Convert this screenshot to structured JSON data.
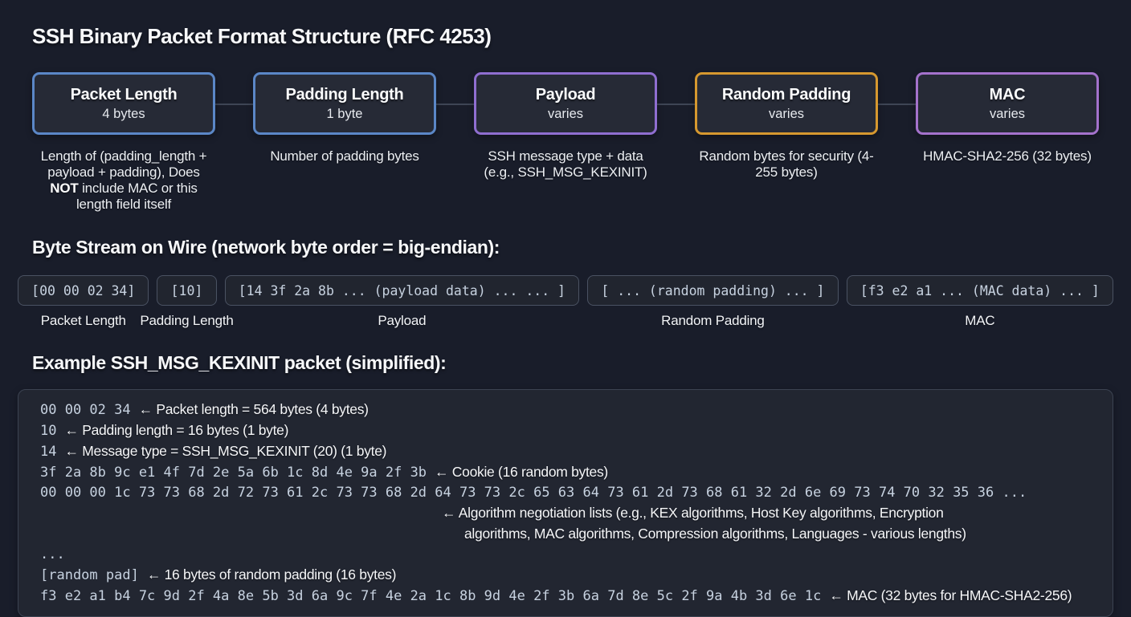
{
  "title": "SSH Binary Packet Format Structure (RFC 4253)",
  "colors": {
    "background": "#191d2a",
    "box_fill": "#262a36",
    "blue": "#5b87c7",
    "purple": "#8f6ed0",
    "orange": "#d6982f",
    "violet": "#a472cc",
    "hex_text": "#c7d2e0",
    "muted_border": "#4a5262"
  },
  "fields": [
    {
      "id": "packet-length",
      "name": "Packet Length",
      "size": "4 bytes",
      "accent": "blue",
      "desc": [
        {
          "t": "Length of (padding_length + payload + padding), Does "
        },
        {
          "t": "NOT",
          "b": true
        },
        {
          "t": " include MAC or this length field itself"
        }
      ]
    },
    {
      "id": "padding-length",
      "name": "Padding Length",
      "size": "1 byte",
      "accent": "blue",
      "desc": [
        {
          "t": "Number of padding bytes"
        }
      ]
    },
    {
      "id": "payload",
      "name": "Payload",
      "size": "varies",
      "accent": "purple",
      "desc": [
        {
          "t": "SSH message type + data (e.g., SSH_MSG_KEXINIT)"
        }
      ]
    },
    {
      "id": "random-padding",
      "name": "Random Padding",
      "size": "varies",
      "accent": "orange",
      "desc": [
        {
          "t": "Random bytes for security (4-255 bytes)"
        }
      ]
    },
    {
      "id": "mac",
      "name": "MAC",
      "size": "varies",
      "accent": "violet",
      "desc": [
        {
          "t": "HMAC-SHA2-256 (32 bytes)"
        }
      ]
    }
  ],
  "stream": {
    "heading": "Byte Stream on Wire (network byte order = big-endian):",
    "segments": [
      {
        "id": "packet-length",
        "bytes": "[00 00 02 34]",
        "label": "Packet Length"
      },
      {
        "id": "padding-length",
        "bytes": "[10]",
        "label": "Padding Length"
      },
      {
        "id": "payload",
        "bytes": "[14 3f 2a 8b  ... (payload data) ... ... ]",
        "label": "Payload"
      },
      {
        "id": "random-padding",
        "bytes": "[ ... (random padding) ... ]",
        "label": "Random Padding"
      },
      {
        "id": "mac",
        "bytes": "[f3 e2 a1 ... (MAC data) ... ]",
        "label": "MAC"
      }
    ]
  },
  "example": {
    "heading": "Example SSH_MSG_KEXINIT packet (simplified):",
    "lines": [
      {
        "hex": "00 00 02 34",
        "note": "← Packet length = 564 bytes (4 bytes)"
      },
      {
        "hex": "10",
        "note": "← Padding length = 16 bytes (1 byte)"
      },
      {
        "hex": "14",
        "note": "← Message type = SSH_MSG_KEXINIT (20) (1 byte)"
      },
      {
        "hex": "3f 2a 8b 9c e1 4f 7d 2e 5a 6b 1c 8d 4e 9a 2f 3b",
        "note": "← Cookie (16 random bytes)"
      },
      {
        "hex": "00 00 00 1c 73 73 68 2d 72 73 61 2c 73 73 68 2d 64 73 73 2c 65 63 64 73 61 2d 73 68 61 32 2d 6e 69 73 74 70 32 35 36 ...",
        "note": ""
      },
      {
        "hex": "",
        "note": "← Algorithm negotiation lists (e.g., KEX algorithms, Host Key algorithms, Encryption",
        "indent": 1
      },
      {
        "hex": "",
        "note": "algorithms, MAC algorithms, Compression algorithms, Languages - various lengths)",
        "indent": 2
      },
      {
        "hex": "...",
        "note": ""
      },
      {
        "hex": "[random pad]",
        "note": "← 16 bytes of random padding (16 bytes)"
      },
      {
        "hex": "f3 e2 a1 b4 7c 9d 2f 4a 8e 5b 3d 6a 9c 7f 4e 2a 1c 8b 9d 4e 2f 3b 6a 7d 8e 5c 2f 9a 4b 3d 6e 1c",
        "note": "← MAC (32 bytes for HMAC-SHA2-256)"
      }
    ]
  }
}
